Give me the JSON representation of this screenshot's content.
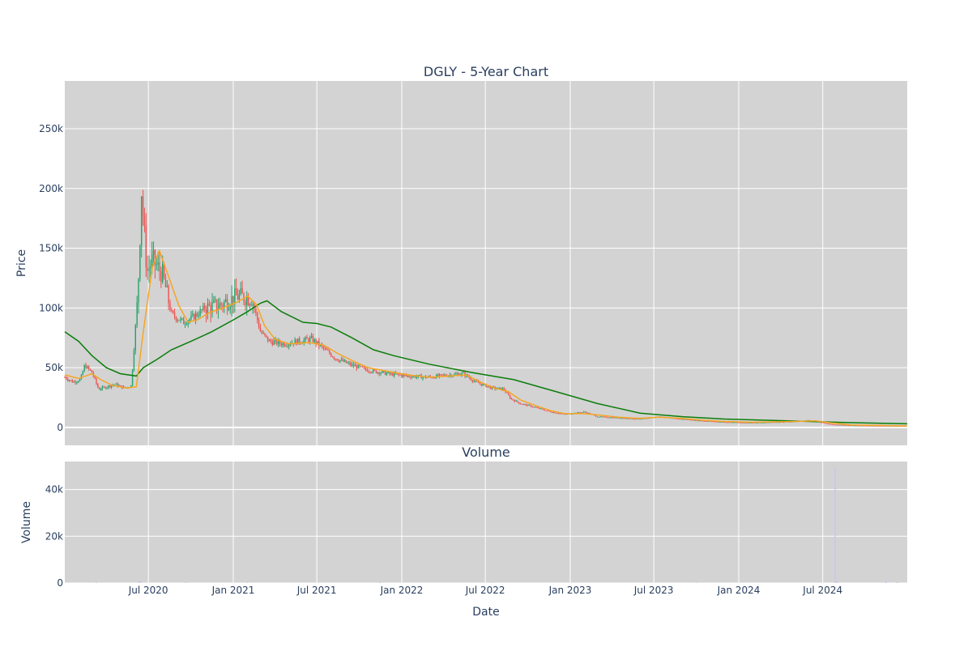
{
  "chart_data": [
    {
      "type": "candlestick",
      "title": "DGLY - 5-Year Chart",
      "ylabel": "Price",
      "xlabel": "",
      "x_range": [
        "2020-01-02",
        "2024-12-31"
      ],
      "ylim": [
        -15000,
        290000
      ],
      "y_ticks": [
        0,
        50000,
        100000,
        150000,
        200000,
        250000
      ],
      "y_tick_labels": [
        "0",
        "50k",
        "100k",
        "150k",
        "200k",
        "250k"
      ],
      "grid": true,
      "legend": false,
      "plot_bgcolor": "#d3d3d3",
      "increasing_color": "#26a269",
      "decreasing_color": "#ef5350",
      "price_path": [
        [
          "2020-01-02",
          42000
        ],
        [
          "2020-01-20",
          38000
        ],
        [
          "2020-02-05",
          40000
        ],
        [
          "2020-02-14",
          52000
        ],
        [
          "2020-03-01",
          46000
        ],
        [
          "2020-03-15",
          32000
        ],
        [
          "2020-04-01",
          34000
        ],
        [
          "2020-04-20",
          36000
        ],
        [
          "2020-05-10",
          33000
        ],
        [
          "2020-05-25",
          35000
        ],
        [
          "2020-06-08",
          110000
        ],
        [
          "2020-06-12",
          150000
        ],
        [
          "2020-06-16",
          200000
        ],
        [
          "2020-06-20",
          175000
        ],
        [
          "2020-06-28",
          130000
        ],
        [
          "2020-07-10",
          140000
        ],
        [
          "2020-08-01",
          128000
        ],
        [
          "2020-08-20",
          95000
        ],
        [
          "2020-09-15",
          88000
        ],
        [
          "2020-10-05",
          92000
        ],
        [
          "2020-11-01",
          100000
        ],
        [
          "2020-12-01",
          102000
        ],
        [
          "2021-01-10",
          110000
        ],
        [
          "2021-02-10",
          108000
        ],
        [
          "2021-03-01",
          80000
        ],
        [
          "2021-03-20",
          72000
        ],
        [
          "2021-04-20",
          70000
        ],
        [
          "2021-05-20",
          72000
        ],
        [
          "2021-06-20",
          74000
        ],
        [
          "2021-07-10",
          68000
        ],
        [
          "2021-08-10",
          58000
        ],
        [
          "2021-09-15",
          52000
        ],
        [
          "2021-10-20",
          48000
        ],
        [
          "2021-12-01",
          45000
        ],
        [
          "2022-01-15",
          43000
        ],
        [
          "2022-03-01",
          42000
        ],
        [
          "2022-04-15",
          44000
        ],
        [
          "2022-05-15",
          45000
        ],
        [
          "2022-06-10",
          38000
        ],
        [
          "2022-07-15",
          33000
        ],
        [
          "2022-08-10",
          32000
        ],
        [
          "2022-08-25",
          24000
        ],
        [
          "2022-09-15",
          20000
        ],
        [
          "2022-10-15",
          17000
        ],
        [
          "2022-11-20",
          13000
        ],
        [
          "2022-12-20",
          11000
        ],
        [
          "2023-02-01",
          13000
        ],
        [
          "2023-03-01",
          9000
        ],
        [
          "2023-04-15",
          8000
        ],
        [
          "2023-06-01",
          7000
        ],
        [
          "2023-07-10",
          9000
        ],
        [
          "2023-09-01",
          7000
        ],
        [
          "2023-10-15",
          5500
        ],
        [
          "2023-12-01",
          4500
        ],
        [
          "2024-01-15",
          4000
        ],
        [
          "2024-03-01",
          4200
        ],
        [
          "2024-05-01",
          5000
        ],
        [
          "2024-06-01",
          6000
        ],
        [
          "2024-07-01",
          4000
        ],
        [
          "2024-07-20",
          2500
        ],
        [
          "2024-09-01",
          1800
        ],
        [
          "2024-10-15",
          1500
        ],
        [
          "2024-12-31",
          1200
        ]
      ],
      "ma_short": [
        [
          "2020-01-02",
          44000
        ],
        [
          "2020-02-01",
          41000
        ],
        [
          "2020-03-01",
          45000
        ],
        [
          "2020-03-20",
          40000
        ],
        [
          "2020-04-15",
          35000
        ],
        [
          "2020-05-15",
          33000
        ],
        [
          "2020-06-05",
          34000
        ],
        [
          "2020-06-20",
          80000
        ],
        [
          "2020-07-10",
          135000
        ],
        [
          "2020-07-25",
          148000
        ],
        [
          "2020-08-15",
          125000
        ],
        [
          "2020-09-05",
          102000
        ],
        [
          "2020-09-25",
          88000
        ],
        [
          "2020-10-15",
          90000
        ],
        [
          "2020-11-10",
          96000
        ],
        [
          "2020-12-10",
          100000
        ],
        [
          "2021-01-10",
          105000
        ],
        [
          "2021-02-01",
          110000
        ],
        [
          "2021-02-20",
          103000
        ],
        [
          "2021-03-10",
          85000
        ],
        [
          "2021-04-01",
          74000
        ],
        [
          "2021-05-01",
          70000
        ],
        [
          "2021-06-15",
          71000
        ],
        [
          "2021-07-15",
          69000
        ],
        [
          "2021-08-15",
          62000
        ],
        [
          "2021-09-15",
          56000
        ],
        [
          "2021-10-20",
          50000
        ],
        [
          "2021-12-01",
          47000
        ],
        [
          "2022-01-15",
          44000
        ],
        [
          "2022-03-01",
          42000
        ],
        [
          "2022-04-15",
          43000
        ],
        [
          "2022-05-20",
          44000
        ],
        [
          "2022-06-20",
          38000
        ],
        [
          "2022-07-20",
          33000
        ],
        [
          "2022-08-20",
          30000
        ],
        [
          "2022-09-15",
          23000
        ],
        [
          "2022-10-20",
          18000
        ],
        [
          "2022-11-20",
          14000
        ],
        [
          "2022-12-20",
          11500
        ],
        [
          "2023-02-01",
          11500
        ],
        [
          "2023-03-01",
          10500
        ],
        [
          "2023-04-15",
          8500
        ],
        [
          "2023-06-01",
          7500
        ],
        [
          "2023-07-10",
          8500
        ],
        [
          "2023-09-01",
          7500
        ],
        [
          "2023-10-15",
          6000
        ],
        [
          "2023-12-01",
          5000
        ],
        [
          "2024-02-01",
          4300
        ],
        [
          "2024-05-01",
          5000
        ],
        [
          "2024-06-15",
          5500
        ],
        [
          "2024-07-15",
          4000
        ],
        [
          "2024-09-01",
          2000
        ],
        [
          "2024-12-31",
          1300
        ]
      ],
      "ma_long": [
        [
          "2020-01-02",
          80000
        ],
        [
          "2020-02-01",
          72000
        ],
        [
          "2020-03-01",
          60000
        ],
        [
          "2020-04-01",
          50000
        ],
        [
          "2020-05-01",
          45000
        ],
        [
          "2020-06-05",
          43000
        ],
        [
          "2020-06-20",
          50000
        ],
        [
          "2020-07-20",
          57000
        ],
        [
          "2020-08-20",
          65000
        ],
        [
          "2020-10-01",
          72000
        ],
        [
          "2020-11-15",
          80000
        ],
        [
          "2021-01-01",
          90000
        ],
        [
          "2021-02-01",
          97000
        ],
        [
          "2021-03-01",
          104000
        ],
        [
          "2021-03-15",
          106000
        ],
        [
          "2021-04-15",
          97000
        ],
        [
          "2021-06-01",
          88000
        ],
        [
          "2021-07-01",
          87000
        ],
        [
          "2021-08-01",
          84000
        ],
        [
          "2021-09-15",
          75000
        ],
        [
          "2021-11-01",
          65000
        ],
        [
          "2021-12-15",
          60000
        ],
        [
          "2022-03-01",
          53000
        ],
        [
          "2022-06-01",
          46000
        ],
        [
          "2022-09-01",
          40000
        ],
        [
          "2022-12-01",
          30000
        ],
        [
          "2023-03-01",
          20000
        ],
        [
          "2023-06-01",
          12000
        ],
        [
          "2023-09-01",
          9000
        ],
        [
          "2023-12-01",
          7000
        ],
        [
          "2024-03-01",
          6000
        ],
        [
          "2024-06-01",
          5000
        ],
        [
          "2024-09-01",
          4000
        ],
        [
          "2024-12-31",
          3000
        ]
      ]
    },
    {
      "type": "bar",
      "title": "Volume",
      "xlabel": "Date",
      "ylabel": "Volume",
      "ylim": [
        0,
        52000
      ],
      "y_ticks": [
        0,
        20000,
        40000
      ],
      "y_tick_labels": [
        "0",
        "20k",
        "40k"
      ],
      "x_ticks": [
        "2020-07-01",
        "2021-01-01",
        "2021-07-01",
        "2022-01-01",
        "2022-07-01",
        "2023-01-01",
        "2023-07-01",
        "2024-01-01",
        "2024-07-01"
      ],
      "x_tick_labels": [
        "Jul 2020",
        "Jan 2021",
        "Jul 2021",
        "Jan 2022",
        "Jul 2022",
        "Jan 2023",
        "Jul 2023",
        "Jan 2024",
        "Jul 2024"
      ],
      "grid": true,
      "plot_bgcolor": "#d3d3d3",
      "bar_color": "#c8c8f0",
      "values": [
        [
          "2020-03-10",
          400
        ],
        [
          "2020-06-10",
          900
        ],
        [
          "2020-06-15",
          1100
        ],
        [
          "2020-09-20",
          350
        ],
        [
          "2021-02-01",
          300
        ],
        [
          "2021-11-15",
          600
        ],
        [
          "2022-07-15",
          200
        ],
        [
          "2023-10-01",
          150
        ],
        [
          "2024-07-28",
          50000
        ],
        [
          "2024-08-01",
          1200
        ],
        [
          "2024-11-15",
          900
        ],
        [
          "2024-12-10",
          700
        ]
      ]
    }
  ]
}
